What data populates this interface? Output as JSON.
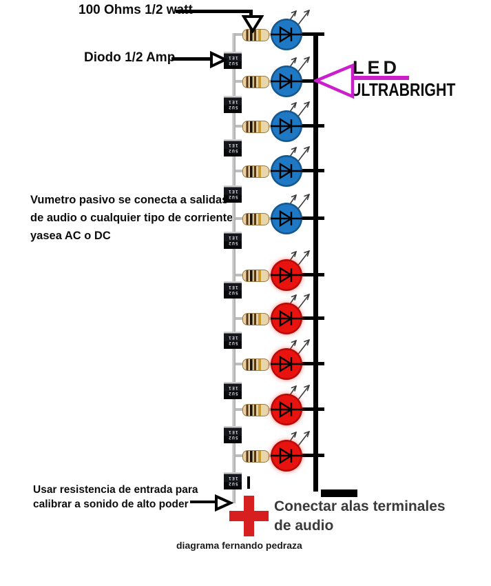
{
  "annotations": {
    "resistor_label": "100 Ohms 1/2 watt",
    "diode_label": "Diodo 1/2 Amp",
    "description_lines": [
      "Vumetro pasivo se conecta a salidas",
      "de audio o cualquier tipo de corriente",
      "yasea AC o DC"
    ],
    "led_type_line1": "LED",
    "led_type_line2": "ULTRABRIGHT",
    "calibration_lines": [
      "Usar resistencia de entrada para",
      "calibrar a sonido de alto poder"
    ],
    "connect_lines": [
      "Conectar alas terminales",
      "de audio"
    ],
    "credit": "diagrama fernando pedraza",
    "positive_terminal": "+",
    "negative_terminal": "-"
  },
  "circuit": {
    "led_count": 10,
    "stages": [
      {
        "led_color": "blue"
      },
      {
        "led_color": "blue"
      },
      {
        "led_color": "blue"
      },
      {
        "led_color": "blue"
      },
      {
        "led_color": "blue"
      },
      {
        "led_color": "red"
      },
      {
        "led_color": "red"
      },
      {
        "led_color": "red"
      },
      {
        "led_color": "red"
      },
      {
        "led_color": "red"
      }
    ],
    "diode_marking_lines": [
      "5U2",
      "1E1"
    ],
    "colors": {
      "blue_led": "#1e78c4",
      "red_led": "#e8120e",
      "magenta_accent": "#cc1fcc",
      "plus_terminal_red": "#d81f1f",
      "wire_black": "#000000",
      "wire_gray": "#bdbdbd"
    }
  }
}
